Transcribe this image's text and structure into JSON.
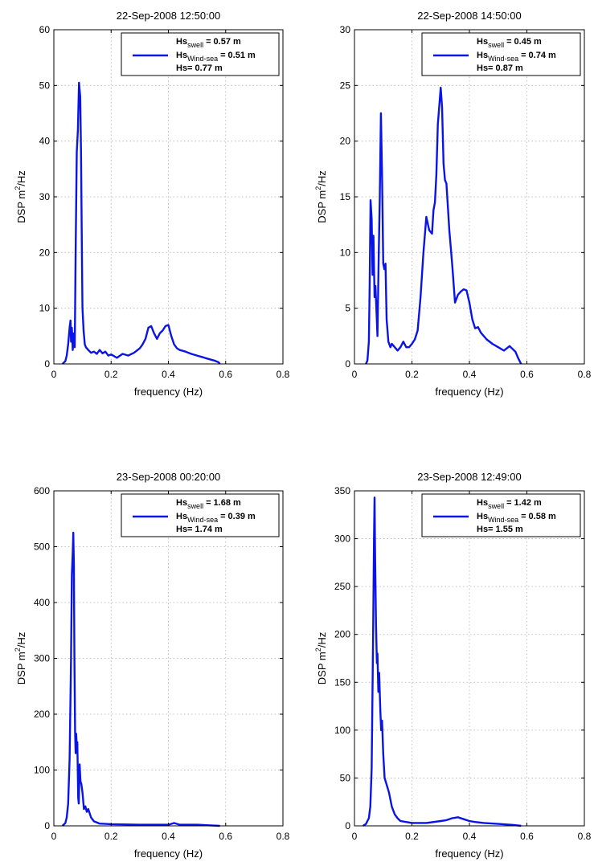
{
  "chart_data": [
    {
      "type": "line",
      "title": "22-Sep-2008 12:50:00",
      "xlabel": "frequency (Hz)",
      "ylabel_main": "DSP m",
      "ylabel_sup": "2",
      "ylabel_tail": "/Hz",
      "xlim": [
        0,
        0.8
      ],
      "ylim": [
        0,
        60
      ],
      "xticks": [
        0,
        0.2,
        0.4,
        0.6,
        0.8
      ],
      "yticks": [
        0,
        10,
        20,
        30,
        40,
        50,
        60
      ],
      "xtick_labels": [
        "0",
        "0.2",
        "0.4",
        "0.6",
        "0.8"
      ],
      "ytick_labels": [
        "0",
        "10",
        "20",
        "30",
        "40",
        "50",
        "60"
      ],
      "grid": true,
      "legend_position": "top-right",
      "legend": {
        "swell_label": "Hs",
        "swell_sub": "swell",
        "swell_value": "= 0.57 m",
        "wind_label": "Hs",
        "wind_sub": "Wind-sea",
        "wind_value": "= 0.51 m",
        "total_label": "Hs= 0.77 m"
      },
      "color": "#0a14e6",
      "x": [
        0.03,
        0.04,
        0.045,
        0.05,
        0.055,
        0.058,
        0.06,
        0.063,
        0.066,
        0.07,
        0.073,
        0.076,
        0.08,
        0.084,
        0.088,
        0.092,
        0.095,
        0.098,
        0.1,
        0.104,
        0.108,
        0.112,
        0.12,
        0.13,
        0.14,
        0.15,
        0.16,
        0.17,
        0.18,
        0.19,
        0.2,
        0.22,
        0.24,
        0.26,
        0.28,
        0.3,
        0.31,
        0.32,
        0.33,
        0.34,
        0.35,
        0.36,
        0.37,
        0.38,
        0.39,
        0.4,
        0.41,
        0.42,
        0.43,
        0.44,
        0.46,
        0.48,
        0.5,
        0.52,
        0.54,
        0.56,
        0.575,
        0.58
      ],
      "values": [
        0,
        0.5,
        1.5,
        3.5,
        6.5,
        7.8,
        4,
        6.5,
        2.5,
        5.5,
        3,
        20,
        38,
        42,
        50.5,
        48,
        38,
        20,
        10,
        6,
        3.5,
        3,
        2.5,
        2,
        2.2,
        1.8,
        2.5,
        1.9,
        2.2,
        1.5,
        1.7,
        1.1,
        1.8,
        1.5,
        2,
        2.8,
        3.5,
        4.5,
        6.5,
        6.8,
        5.5,
        4.5,
        5.5,
        6,
        6.8,
        7,
        5,
        3.5,
        2.8,
        2.5,
        2.2,
        1.8,
        1.5,
        1.2,
        0.9,
        0.6,
        0.3,
        0
      ]
    },
    {
      "type": "line",
      "title": "22-Sep-2008 14:50:00",
      "xlabel": "frequency (Hz)",
      "ylabel_main": "DSP m",
      "ylabel_sup": "2",
      "ylabel_tail": "/Hz",
      "xlim": [
        0,
        0.8
      ],
      "ylim": [
        0,
        30
      ],
      "xticks": [
        0,
        0.2,
        0.4,
        0.6,
        0.8
      ],
      "yticks": [
        0,
        5,
        10,
        15,
        20,
        25,
        30
      ],
      "xtick_labels": [
        "0",
        "0.2",
        "0.4",
        "0.6",
        "0.8"
      ],
      "ytick_labels": [
        "0",
        "5",
        "10",
        "15",
        "20",
        "25",
        "30"
      ],
      "grid": true,
      "legend_position": "top-right",
      "legend": {
        "swell_label": "Hs",
        "swell_sub": "swell",
        "swell_value": "= 0.45 m",
        "wind_label": "Hs",
        "wind_sub": "Wind-sea",
        "wind_value": "= 0.74 m",
        "total_label": "Hs= 0.87 m"
      },
      "color": "#0a14e6",
      "x": [
        0.04,
        0.045,
        0.05,
        0.053,
        0.056,
        0.06,
        0.063,
        0.066,
        0.07,
        0.073,
        0.077,
        0.08,
        0.084,
        0.088,
        0.092,
        0.096,
        0.1,
        0.104,
        0.108,
        0.112,
        0.118,
        0.125,
        0.13,
        0.14,
        0.15,
        0.16,
        0.17,
        0.18,
        0.19,
        0.2,
        0.21,
        0.22,
        0.23,
        0.24,
        0.25,
        0.26,
        0.27,
        0.275,
        0.28,
        0.285,
        0.29,
        0.3,
        0.305,
        0.31,
        0.315,
        0.32,
        0.33,
        0.34,
        0.35,
        0.36,
        0.37,
        0.38,
        0.39,
        0.4,
        0.41,
        0.42,
        0.43,
        0.44,
        0.46,
        0.48,
        0.5,
        0.52,
        0.54,
        0.56,
        0.57,
        0.58
      ],
      "values": [
        0,
        0.3,
        2,
        7,
        14.7,
        13,
        8,
        11.5,
        6,
        7,
        4.5,
        2.5,
        9,
        15,
        22.5,
        17,
        9,
        8.5,
        9,
        4,
        2,
        1.5,
        1.8,
        1.5,
        1.2,
        1.5,
        2,
        1.5,
        1.5,
        1.8,
        2.2,
        3,
        6,
        10,
        13.2,
        12,
        11.7,
        13.8,
        14.5,
        17,
        21.5,
        24.8,
        23,
        18,
        16.5,
        16.2,
        12,
        9,
        5.5,
        6.2,
        6.5,
        6.7,
        6.6,
        5.5,
        4,
        3.2,
        3.3,
        2.8,
        2.2,
        1.8,
        1.5,
        1.2,
        1.6,
        1.1,
        0.5,
        0
      ]
    },
    {
      "type": "line",
      "title": "23-Sep-2008 00:20:00",
      "xlabel": "frequency (Hz)",
      "ylabel_main": "DSP m",
      "ylabel_sup": "2",
      "ylabel_tail": "/Hz",
      "xlim": [
        0,
        0.8
      ],
      "ylim": [
        0,
        600
      ],
      "xticks": [
        0,
        0.2,
        0.4,
        0.6,
        0.8
      ],
      "yticks": [
        0,
        100,
        200,
        300,
        400,
        500,
        600
      ],
      "xtick_labels": [
        "0",
        "0.2",
        "0.4",
        "0.6",
        "0.8"
      ],
      "ytick_labels": [
        "0",
        "100",
        "200",
        "300",
        "400",
        "500",
        "600"
      ],
      "grid": true,
      "legend_position": "top-right",
      "legend": {
        "swell_label": "Hs",
        "swell_sub": "swell",
        "swell_value": "= 1.68 m",
        "wind_label": "Hs",
        "wind_sub": "Wind-sea",
        "wind_value": "= 0.39 m",
        "total_label": "Hs= 1.74 m"
      },
      "color": "#0a14e6",
      "x": [
        0.03,
        0.04,
        0.045,
        0.05,
        0.055,
        0.06,
        0.063,
        0.066,
        0.068,
        0.07,
        0.072,
        0.074,
        0.076,
        0.078,
        0.08,
        0.082,
        0.085,
        0.087,
        0.09,
        0.093,
        0.096,
        0.1,
        0.105,
        0.11,
        0.115,
        0.12,
        0.13,
        0.14,
        0.15,
        0.16,
        0.2,
        0.3,
        0.4,
        0.42,
        0.44,
        0.5,
        0.58
      ],
      "values": [
        0,
        5,
        15,
        40,
        120,
        300,
        450,
        490,
        525,
        470,
        300,
        170,
        130,
        165,
        140,
        150,
        50,
        40,
        110,
        80,
        75,
        60,
        30,
        35,
        25,
        30,
        15,
        8,
        6,
        4,
        3,
        2,
        2,
        5,
        2,
        2,
        0
      ]
    },
    {
      "type": "line",
      "title": "23-Sep-2008 12:49:00",
      "xlabel": "frequency (Hz)",
      "ylabel_main": "DSP m",
      "ylabel_sup": "2",
      "ylabel_tail": "/Hz",
      "xlim": [
        0,
        0.8
      ],
      "ylim": [
        0,
        350
      ],
      "xticks": [
        0,
        0.2,
        0.4,
        0.6,
        0.8
      ],
      "yticks": [
        0,
        50,
        100,
        150,
        200,
        250,
        300,
        350
      ],
      "xtick_labels": [
        "0",
        "0.2",
        "0.4",
        "0.6",
        "0.8"
      ],
      "ytick_labels": [
        "0",
        "50",
        "100",
        "150",
        "200",
        "250",
        "300",
        "350"
      ],
      "grid": true,
      "legend_position": "top-right",
      "legend": {
        "swell_label": "Hs",
        "swell_sub": "swell",
        "swell_value": "= 1.42 m",
        "wind_label": "Hs",
        "wind_sub": "Wind-sea",
        "wind_value": "= 0.58 m",
        "total_label": "Hs= 1.55 m"
      },
      "color": "#0a14e6",
      "x": [
        0.03,
        0.04,
        0.05,
        0.055,
        0.06,
        0.065,
        0.068,
        0.07,
        0.072,
        0.075,
        0.078,
        0.08,
        0.083,
        0.086,
        0.09,
        0.093,
        0.096,
        0.1,
        0.105,
        0.11,
        0.12,
        0.13,
        0.14,
        0.15,
        0.16,
        0.18,
        0.2,
        0.25,
        0.3,
        0.32,
        0.34,
        0.36,
        0.38,
        0.4,
        0.42,
        0.45,
        0.5,
        0.55,
        0.58
      ],
      "values": [
        0,
        2,
        8,
        20,
        60,
        200,
        300,
        343,
        280,
        210,
        170,
        180,
        140,
        160,
        120,
        100,
        110,
        75,
        50,
        45,
        35,
        20,
        12,
        8,
        5,
        4,
        3,
        3,
        5,
        6,
        8,
        9,
        7,
        5,
        4,
        3,
        2,
        1,
        0
      ]
    }
  ]
}
